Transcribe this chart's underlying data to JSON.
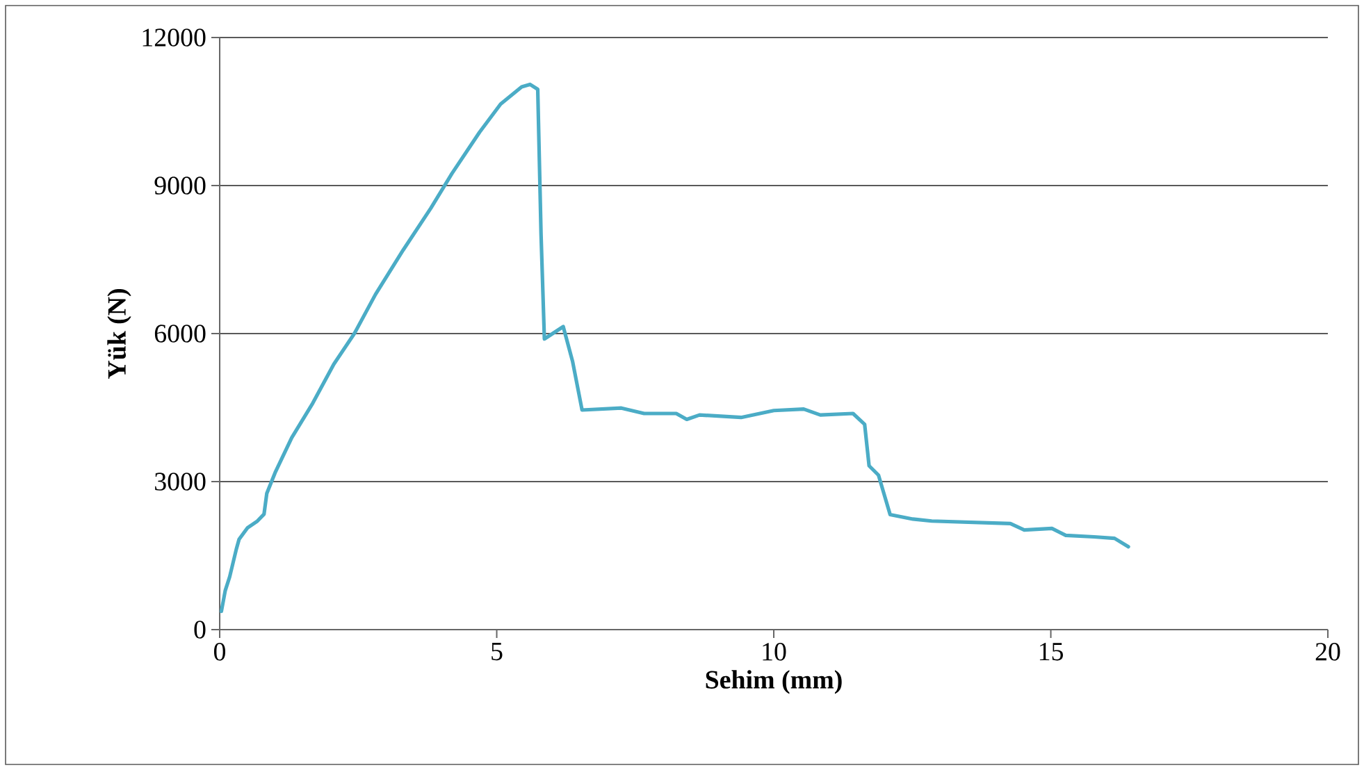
{
  "chart_data": {
    "type": "line",
    "xlabel": "Sehim (mm)",
    "ylabel": "Yük (N)",
    "xlim": [
      0,
      20
    ],
    "xticks": [
      0,
      5,
      10,
      15,
      20
    ],
    "ylim": [
      0,
      12000
    ],
    "yticks": [
      0,
      3000,
      6000,
      9000,
      12000
    ],
    "grid": "y",
    "series": [
      {
        "color": "#4bacc6",
        "x": [
          0.03,
          0.1,
          0.18,
          0.3,
          0.35,
          0.5,
          0.68,
          0.8,
          0.85,
          1.0,
          1.3,
          1.68,
          2.06,
          2.43,
          2.81,
          3.31,
          3.81,
          4.19,
          4.69,
          5.07,
          5.45,
          5.6,
          5.74,
          5.8,
          5.86,
          6.2,
          6.37,
          6.54,
          7.25,
          7.66,
          8.24,
          8.43,
          8.66,
          9.41,
          10.0,
          10.54,
          10.84,
          11.43,
          11.64,
          11.72,
          11.89,
          12.1,
          12.51,
          12.85,
          14.27,
          14.52,
          15.02,
          15.27,
          15.78,
          16.15,
          16.4
        ],
        "values": [
          370,
          790,
          1070,
          1630,
          1830,
          2060,
          2200,
          2340,
          2760,
          3180,
          3890,
          4590,
          5380,
          6000,
          6790,
          7690,
          8540,
          9240,
          10080,
          10650,
          11000,
          11050,
          10950,
          8000,
          5890,
          6140,
          5430,
          4450,
          4490,
          4380,
          4380,
          4260,
          4350,
          4300,
          4440,
          4470,
          4350,
          4380,
          4160,
          3320,
          3130,
          2330,
          2240,
          2200,
          2150,
          2020,
          2050,
          1910,
          1880,
          1850,
          1680
        ]
      }
    ]
  }
}
